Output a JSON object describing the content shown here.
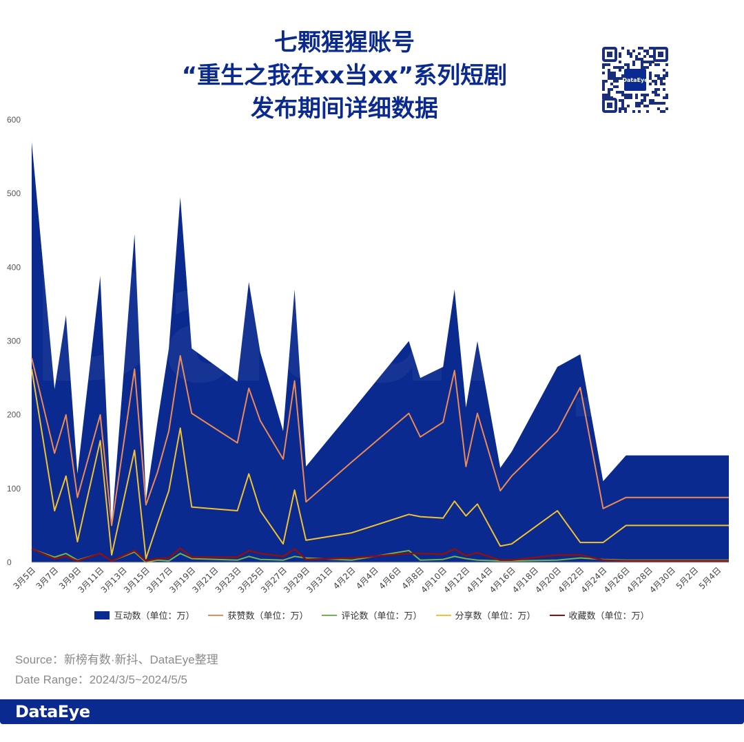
{
  "header": {
    "title_lines": [
      "七颗猩猩账号",
      "“重生之我在xx当xx”系列短剧",
      "发布期间详细数据"
    ]
  },
  "qr": {
    "label": "DataEye"
  },
  "watermark": "DataEye",
  "chart_data": {
    "type": "area",
    "title": "",
    "xlabel": "",
    "ylabel": "",
    "ylim": [
      0,
      600
    ],
    "yticks": [
      0,
      100,
      200,
      300,
      400,
      500,
      600
    ],
    "grid": false,
    "legend_position": "bottom",
    "x": [
      "3月5日",
      "3月7日",
      "3月8日",
      "3月9日",
      "3月11日",
      "3月12日",
      "3月14日",
      "3月15日",
      "3月16日",
      "3月17日",
      "3月18日",
      "3月19日",
      "3月23日",
      "3月24日",
      "3月25日",
      "3月27日",
      "3月28日",
      "3月29日",
      "4月2日",
      "4月7日",
      "4月8日",
      "4月10日",
      "4月11日",
      "4月12日",
      "4月13日",
      "4月15日",
      "4月16日",
      "4月20日",
      "4月22日",
      "4月24日",
      "4月26日",
      "4月28日",
      "4月30日",
      "5月1日",
      "5月2日",
      "5月5日"
    ],
    "x_tick_labels": [
      "3月5日",
      "3月7日",
      "3月9日",
      "3月11日",
      "3月13日",
      "3月15日",
      "3月17日",
      "3月19日",
      "3月21日",
      "3月23日",
      "3月25日",
      "3月27日",
      "3月29日",
      "3月31日",
      "4月2日",
      "4月4日",
      "4月6日",
      "4月8日",
      "4月10日",
      "4月12日",
      "4月14日",
      "4月16日",
      "4月18日",
      "4月20日",
      "4月22日",
      "4月24日",
      "4月26日",
      "4月28日",
      "4月30日",
      "5月2日",
      "5月4日"
    ],
    "series": [
      {
        "name": "互动数（单位：万）",
        "kind": "area",
        "color": "#0a2a8f",
        "values": [
          570,
          235,
          335,
          120,
          388,
          50,
          445,
          85,
          190,
          290,
          495,
          290,
          245,
          380,
          285,
          178,
          370,
          130,
          205,
          300,
          250,
          265,
          370,
          210,
          300,
          128,
          150,
          265,
          282,
          110,
          145,
          145,
          145,
          145,
          145,
          145
        ]
      },
      {
        "name": "获赞数（单位：万）",
        "kind": "line",
        "color": "#ed8a55",
        "values": [
          277,
          148,
          200,
          88,
          200,
          50,
          262,
          78,
          122,
          178,
          280,
          202,
          162,
          236,
          192,
          140,
          246,
          82,
          136,
          202,
          170,
          190,
          260,
          130,
          202,
          97,
          117,
          178,
          237,
          73,
          88,
          88,
          88,
          88,
          88,
          88
        ]
      },
      {
        "name": "评论数（单位：万）",
        "kind": "line",
        "color": "#6fb54b",
        "values": [
          18,
          7,
          12,
          3,
          12,
          2,
          14,
          0,
          3,
          2,
          12,
          5,
          3,
          8,
          4,
          3,
          8,
          6,
          3,
          16,
          3,
          4,
          8,
          5,
          3,
          2,
          2,
          3,
          6,
          4,
          3,
          3,
          3,
          3,
          3,
          3
        ]
      },
      {
        "name": "分享数（单位：万）",
        "kind": "line",
        "color": "#f2c230",
        "values": [
          262,
          70,
          117,
          28,
          165,
          10,
          152,
          5,
          52,
          97,
          182,
          75,
          70,
          120,
          70,
          25,
          98,
          30,
          40,
          65,
          62,
          60,
          83,
          63,
          79,
          22,
          25,
          70,
          27,
          27,
          50,
          50,
          50,
          50,
          50,
          50
        ]
      },
      {
        "name": "收藏数（单位：万）",
        "kind": "line",
        "color": "#8b1010",
        "values": [
          18,
          5,
          8,
          2,
          12,
          2,
          16,
          2,
          5,
          6,
          19,
          7,
          7,
          16,
          12,
          8,
          18,
          4,
          6,
          12,
          12,
          11,
          18,
          9,
          13,
          3,
          3,
          10,
          10,
          3,
          2,
          2,
          2,
          2,
          2,
          2
        ]
      }
    ]
  },
  "legend": [
    {
      "label": "互动数（单位：万）",
      "kind": "box",
      "color": "#0a2a8f"
    },
    {
      "label": "获赞数（单位：万）",
      "kind": "line",
      "color": "#ed8a55"
    },
    {
      "label": "评论数（单位：万）",
      "kind": "line",
      "color": "#6fb54b"
    },
    {
      "label": "分享数（单位：万）",
      "kind": "line",
      "color": "#f2c230"
    },
    {
      "label": "收藏数（单位：万）",
      "kind": "line",
      "color": "#8b1010"
    }
  ],
  "source": {
    "line1": "Source：新榜有数·新抖、DataEye整理",
    "line2": "Date Range：2024/3/5~2024/5/5"
  },
  "footer": {
    "logo": "DataEye"
  }
}
